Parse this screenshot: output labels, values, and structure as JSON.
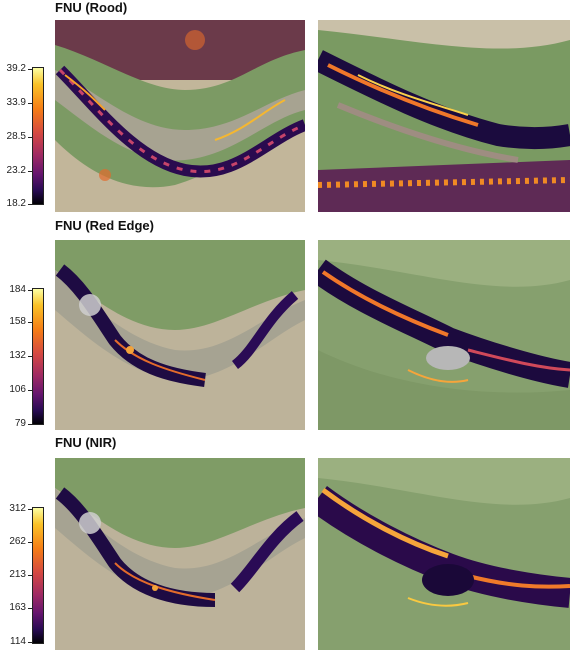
{
  "panels": [
    {
      "title": "FNU (Rood)",
      "ticks": [
        "39.2",
        "33.9",
        "28.5",
        "23.2",
        "18.2"
      ]
    },
    {
      "title": "FNU (Red Edge)",
      "ticks": [
        "184",
        "158",
        "132",
        "106",
        "79"
      ]
    },
    {
      "title": "FNU (NIR)",
      "ticks": [
        "312",
        "262",
        "213",
        "163",
        "114"
      ]
    }
  ],
  "colors": {
    "colormap": "inferno",
    "grass": "#7a9a62",
    "dry_field": "#bdb39a"
  }
}
